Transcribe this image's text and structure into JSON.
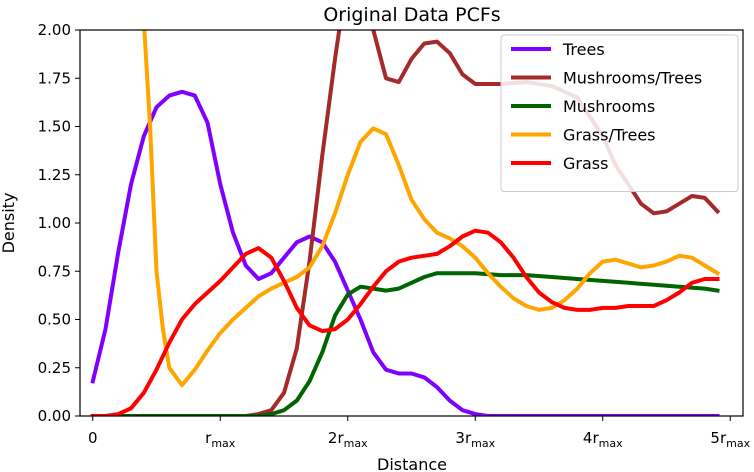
{
  "chart_data": {
    "type": "line",
    "title": "Original Data PCFs",
    "xlabel": "Distance",
    "ylabel": "Density",
    "xlim": [
      -0.1,
      5.1
    ],
    "ylim": [
      0,
      2.0
    ],
    "x_ticks": [
      {
        "value": 0,
        "label": "0",
        "sub": ""
      },
      {
        "value": 1,
        "label": "r",
        "sub": "max"
      },
      {
        "value": 2,
        "label": "2r",
        "sub": "max"
      },
      {
        "value": 3,
        "label": "3r",
        "sub": "max"
      },
      {
        "value": 4,
        "label": "4r",
        "sub": "max"
      },
      {
        "value": 5,
        "label": "5r",
        "sub": "max"
      }
    ],
    "y_ticks": [
      {
        "value": 0.0,
        "label": "0.00"
      },
      {
        "value": 0.25,
        "label": "0.25"
      },
      {
        "value": 0.5,
        "label": "0.50"
      },
      {
        "value": 0.75,
        "label": "0.75"
      },
      {
        "value": 1.0,
        "label": "1.00"
      },
      {
        "value": 1.25,
        "label": "1.25"
      },
      {
        "value": 1.5,
        "label": "1.50"
      },
      {
        "value": 1.75,
        "label": "1.75"
      },
      {
        "value": 2.0,
        "label": "2.00"
      }
    ],
    "grid": false,
    "legend_position": "top-right",
    "series": [
      {
        "name": "Trees",
        "color": "#8000ff",
        "x": [
          0,
          0.1,
          0.2,
          0.3,
          0.4,
          0.5,
          0.6,
          0.7,
          0.8,
          0.9,
          1.0,
          1.1,
          1.2,
          1.3,
          1.4,
          1.5,
          1.6,
          1.7,
          1.8,
          1.9,
          2.0,
          2.1,
          2.2,
          2.3,
          2.4,
          2.5,
          2.6,
          2.7,
          2.8,
          2.9,
          3.0,
          3.1,
          3.2,
          3.5,
          4.0,
          4.5,
          4.9
        ],
        "y": [
          0.18,
          0.45,
          0.85,
          1.2,
          1.45,
          1.6,
          1.66,
          1.68,
          1.66,
          1.52,
          1.2,
          0.95,
          0.78,
          0.71,
          0.74,
          0.82,
          0.9,
          0.93,
          0.9,
          0.8,
          0.65,
          0.5,
          0.33,
          0.24,
          0.22,
          0.22,
          0.2,
          0.15,
          0.08,
          0.03,
          0.01,
          0.0,
          0.0,
          0.0,
          0.0,
          0.0,
          0.0
        ]
      },
      {
        "name": "Mushrooms/Trees",
        "color": "#a52a2a",
        "x": [
          0,
          0.5,
          1.0,
          1.2,
          1.3,
          1.4,
          1.5,
          1.6,
          1.7,
          1.8,
          1.9,
          2.0,
          2.2,
          2.3,
          2.4,
          2.5,
          2.6,
          2.7,
          2.8,
          2.9,
          3.0,
          3.2,
          3.4,
          3.6,
          3.8,
          4.0,
          4.1,
          4.2,
          4.3,
          4.4,
          4.5,
          4.6,
          4.7,
          4.8,
          4.9
        ],
        "y": [
          0.0,
          0.0,
          0.0,
          0.0,
          0.01,
          0.03,
          0.12,
          0.35,
          0.8,
          1.35,
          1.85,
          2.3,
          2.0,
          1.75,
          1.73,
          1.85,
          1.93,
          1.94,
          1.88,
          1.77,
          1.72,
          1.72,
          1.73,
          1.71,
          1.65,
          1.45,
          1.3,
          1.2,
          1.1,
          1.05,
          1.06,
          1.1,
          1.14,
          1.13,
          1.06
        ]
      },
      {
        "name": "Mushrooms",
        "color": "#006400",
        "x": [
          0,
          0.5,
          1.0,
          1.3,
          1.4,
          1.5,
          1.6,
          1.7,
          1.8,
          1.9,
          2.0,
          2.1,
          2.2,
          2.3,
          2.4,
          2.5,
          2.6,
          2.7,
          2.8,
          2.9,
          3.0,
          3.2,
          3.4,
          3.6,
          3.8,
          4.0,
          4.2,
          4.4,
          4.6,
          4.8,
          4.9
        ],
        "y": [
          0.0,
          0.0,
          0.0,
          0.0,
          0.01,
          0.03,
          0.08,
          0.18,
          0.33,
          0.52,
          0.63,
          0.67,
          0.66,
          0.65,
          0.66,
          0.69,
          0.72,
          0.74,
          0.74,
          0.74,
          0.74,
          0.73,
          0.73,
          0.72,
          0.71,
          0.7,
          0.69,
          0.68,
          0.67,
          0.66,
          0.65
        ]
      },
      {
        "name": "Grass/Trees",
        "color": "#ffa500",
        "x": [
          0.4,
          0.45,
          0.5,
          0.55,
          0.6,
          0.7,
          0.8,
          0.9,
          1.0,
          1.1,
          1.2,
          1.3,
          1.4,
          1.5,
          1.6,
          1.7,
          1.8,
          1.9,
          2.0,
          2.1,
          2.2,
          2.3,
          2.4,
          2.5,
          2.6,
          2.7,
          2.8,
          2.9,
          3.0,
          3.1,
          3.2,
          3.3,
          3.4,
          3.5,
          3.6,
          3.7,
          3.8,
          3.9,
          4.0,
          4.1,
          4.2,
          4.3,
          4.4,
          4.5,
          4.6,
          4.7,
          4.8,
          4.9
        ],
        "y": [
          2.05,
          1.5,
          0.75,
          0.45,
          0.25,
          0.16,
          0.24,
          0.34,
          0.43,
          0.5,
          0.56,
          0.62,
          0.66,
          0.69,
          0.72,
          0.77,
          0.88,
          1.05,
          1.25,
          1.42,
          1.49,
          1.46,
          1.3,
          1.12,
          1.02,
          0.95,
          0.92,
          0.88,
          0.82,
          0.74,
          0.67,
          0.61,
          0.57,
          0.55,
          0.56,
          0.6,
          0.66,
          0.74,
          0.8,
          0.81,
          0.79,
          0.77,
          0.78,
          0.8,
          0.83,
          0.82,
          0.78,
          0.74
        ]
      },
      {
        "name": "Grass",
        "color": "#ff0000",
        "x": [
          0,
          0.1,
          0.2,
          0.3,
          0.4,
          0.5,
          0.6,
          0.7,
          0.8,
          0.9,
          1.0,
          1.1,
          1.2,
          1.3,
          1.4,
          1.5,
          1.6,
          1.7,
          1.8,
          1.9,
          2.0,
          2.1,
          2.2,
          2.3,
          2.4,
          2.5,
          2.6,
          2.7,
          2.8,
          2.9,
          3.0,
          3.1,
          3.2,
          3.3,
          3.4,
          3.5,
          3.6,
          3.7,
          3.8,
          3.9,
          4.0,
          4.1,
          4.2,
          4.3,
          4.4,
          4.5,
          4.6,
          4.7,
          4.8,
          4.9
        ],
        "y": [
          0.0,
          0.0,
          0.01,
          0.04,
          0.12,
          0.24,
          0.38,
          0.5,
          0.58,
          0.64,
          0.7,
          0.77,
          0.84,
          0.87,
          0.82,
          0.7,
          0.56,
          0.47,
          0.44,
          0.45,
          0.5,
          0.58,
          0.67,
          0.75,
          0.8,
          0.82,
          0.83,
          0.84,
          0.88,
          0.93,
          0.96,
          0.95,
          0.9,
          0.82,
          0.72,
          0.64,
          0.59,
          0.56,
          0.55,
          0.55,
          0.56,
          0.56,
          0.57,
          0.57,
          0.57,
          0.6,
          0.64,
          0.69,
          0.71,
          0.71
        ]
      }
    ]
  }
}
